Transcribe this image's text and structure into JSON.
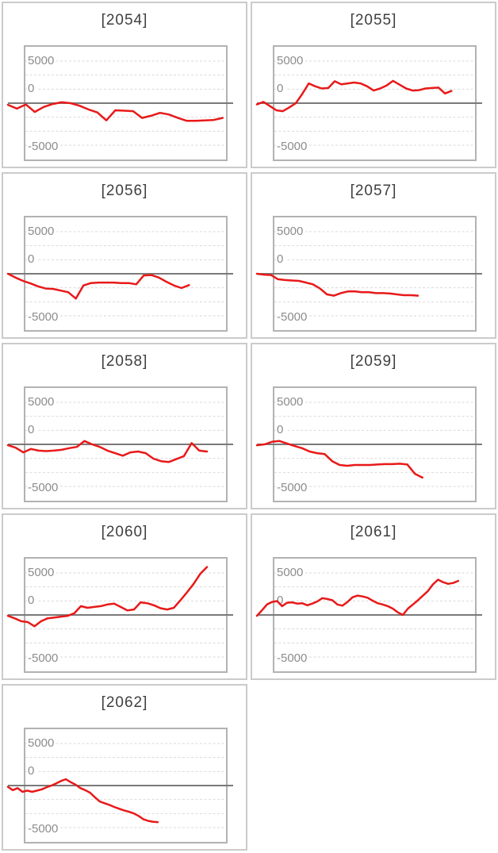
{
  "page": {
    "background": "#ffffff"
  },
  "colors": {
    "series_line": "#e81919",
    "zero_line": "#7a7a7a",
    "plot_frame": "#b2b2b2",
    "gridline": "#dadada",
    "panel_border": "#cbcbcb",
    "axis_label": "#8c8c8c",
    "title_text": "#3f3f3f"
  },
  "axis": {
    "labels": [
      "5000",
      "0",
      "-5000"
    ],
    "yticks": [
      5000,
      0,
      -5000
    ],
    "ylim": [
      -6900,
      6900
    ],
    "grid_interval": 1667,
    "grid_style": "dashed",
    "zero_line": "solid"
  },
  "chart_data": [
    {
      "type": "line",
      "title": "[2054]",
      "x_end_frac": 0.96,
      "values": [
        -200,
        -650,
        -150,
        -1050,
        -450,
        -100,
        100,
        0,
        -300,
        -750,
        -1100,
        -2050,
        -850,
        -900,
        -950,
        -1750,
        -1500,
        -1150,
        -1350,
        -1750,
        -2100,
        -2100,
        -2050,
        -2000,
        -1750
      ]
    },
    {
      "type": "line",
      "title": "[2055]",
      "x_end_frac": 0.87,
      "values": [
        -150,
        150,
        -350,
        -850,
        -950,
        -500,
        0,
        1100,
        2350,
        2000,
        1750,
        1800,
        2600,
        2250,
        2350,
        2450,
        2350,
        2000,
        1500,
        1750,
        2100,
        2650,
        2200,
        1750,
        1500,
        1550,
        1750,
        1800,
        1850,
        1150,
        1450
      ]
    },
    {
      "type": "line",
      "title": "[2056]",
      "x_end_frac": 0.81,
      "values": [
        0,
        -450,
        -850,
        -1150,
        -1500,
        -1750,
        -1800,
        -2000,
        -2200,
        -2950,
        -1400,
        -1100,
        -1050,
        -1050,
        -1050,
        -1100,
        -1100,
        -1250,
        -200,
        -150,
        -450,
        -950,
        -1400,
        -1700,
        -1350
      ]
    },
    {
      "type": "line",
      "title": "[2057]",
      "x_end_frac": 0.72,
      "values": [
        0,
        -100,
        -150,
        -650,
        -750,
        -800,
        -850,
        -1050,
        -1250,
        -1750,
        -2450,
        -2600,
        -2300,
        -2100,
        -2100,
        -2200,
        -2200,
        -2300,
        -2300,
        -2350,
        -2450,
        -2550,
        -2550,
        -2600
      ]
    },
    {
      "type": "line",
      "title": "[2058]",
      "x_end_frac": 0.89,
      "values": [
        -100,
        -400,
        -950,
        -550,
        -750,
        -800,
        -750,
        -650,
        -450,
        -300,
        400,
        0,
        -300,
        -750,
        -1050,
        -1350,
        -950,
        -850,
        -1050,
        -1700,
        -2000,
        -2100,
        -1750,
        -1400,
        150,
        -750,
        -850
      ]
    },
    {
      "type": "line",
      "title": "[2059]",
      "x_end_frac": 0.74,
      "values": [
        -100,
        0,
        300,
        400,
        100,
        -200,
        -450,
        -850,
        -1050,
        -1150,
        -2000,
        -2450,
        -2550,
        -2450,
        -2450,
        -2450,
        -2400,
        -2350,
        -2350,
        -2300,
        -2400,
        -3500,
        -3950
      ]
    },
    {
      "type": "line",
      "title": "[2060]",
      "x_end_frac": 0.89,
      "values": [
        -100,
        -400,
        -750,
        -850,
        -1350,
        -750,
        -400,
        -300,
        -200,
        -100,
        200,
        1050,
        850,
        950,
        1050,
        1250,
        1350,
        950,
        550,
        650,
        1500,
        1400,
        1150,
        800,
        650,
        850,
        1750,
        2700,
        3700,
        4900,
        5700
      ]
    },
    {
      "type": "line",
      "title": "[2061]",
      "x_end_frac": 0.9,
      "values": [
        -100,
        550,
        1250,
        1550,
        1650,
        1050,
        1450,
        1500,
        1350,
        1400,
        1150,
        1350,
        1600,
        2000,
        1900,
        1750,
        1250,
        1100,
        1550,
        2100,
        2300,
        2200,
        2050,
        1700,
        1400,
        1250,
        1050,
        750,
        300,
        0,
        750,
        1250,
        1750,
        2300,
        2850,
        3650,
        4200,
        3900,
        3700,
        3800,
        4050
      ]
    },
    {
      "type": "line",
      "title": "[2062]",
      "x_end_frac": 0.67,
      "values": [
        -150,
        -550,
        -300,
        -750,
        -600,
        -750,
        -600,
        -450,
        -200,
        0,
        250,
        550,
        750,
        400,
        100,
        -300,
        -550,
        -850,
        -1400,
        -1900,
        -2100,
        -2300,
        -2550,
        -2750,
        -2950,
        -3100,
        -3300,
        -3600,
        -4000,
        -4200,
        -4300,
        -4350
      ]
    }
  ]
}
